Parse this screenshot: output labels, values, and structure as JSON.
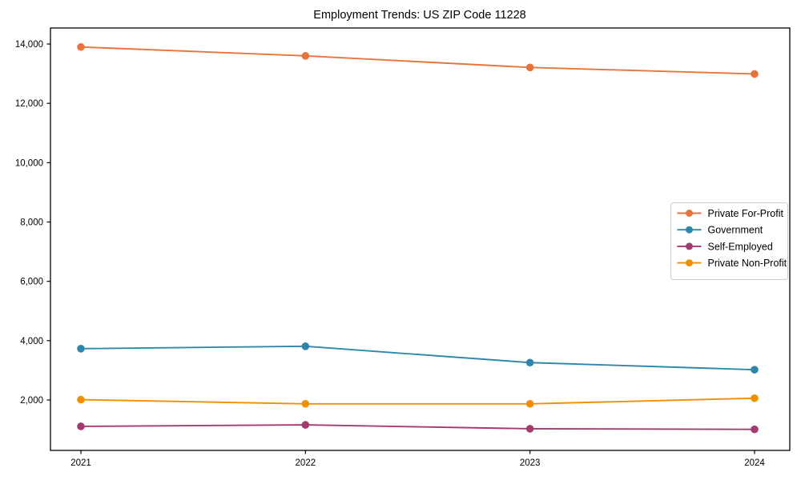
{
  "chart_data": {
    "type": "line",
    "title": "Employment Trends: US ZIP Code 11228",
    "xlabel": "",
    "ylabel": "",
    "categories": [
      "2021",
      "2022",
      "2023",
      "2024"
    ],
    "series": [
      {
        "name": "Private For-Profit",
        "color": "#E8743B",
        "values": [
          13900,
          13600,
          13210,
          12990
        ]
      },
      {
        "name": "Government",
        "color": "#2E86AB",
        "values": [
          3730,
          3810,
          3260,
          3020
        ]
      },
      {
        "name": "Self-Employed",
        "color": "#A23B72",
        "values": [
          1110,
          1160,
          1030,
          1010
        ]
      },
      {
        "name": "Private Non-Profit",
        "color": "#F18F01",
        "values": [
          2010,
          1870,
          1870,
          2060
        ]
      }
    ],
    "ylim": [
      300,
      14540
    ],
    "yticks": [
      2000,
      4000,
      6000,
      8000,
      10000,
      12000,
      14000
    ],
    "grid": false,
    "legend_position": "center-right",
    "axis_color": "#000000",
    "legend_border_color": "#cccccc"
  }
}
